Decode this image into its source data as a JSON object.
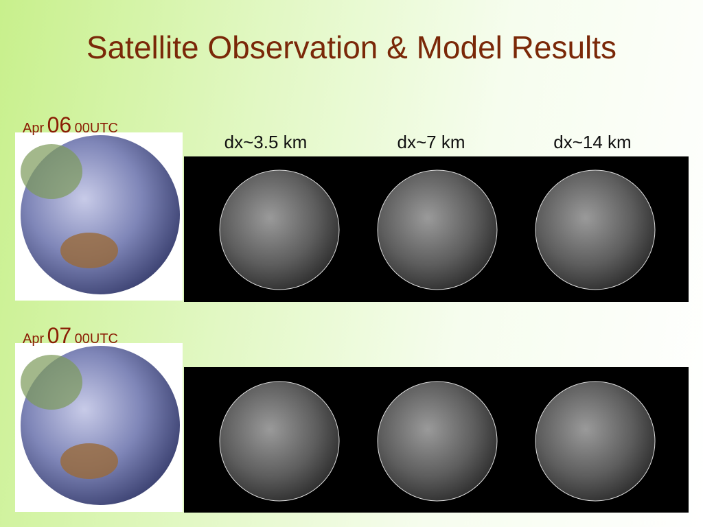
{
  "title": "Satellite Observation & Model Results",
  "columns": [
    "dx~3.5 km",
    "dx~7 km",
    "dx~14 km"
  ],
  "rows": [
    {
      "month": "Apr",
      "day": "06",
      "time": "00UTC"
    },
    {
      "month": "Apr",
      "day": "07",
      "time": "00UTC"
    }
  ]
}
